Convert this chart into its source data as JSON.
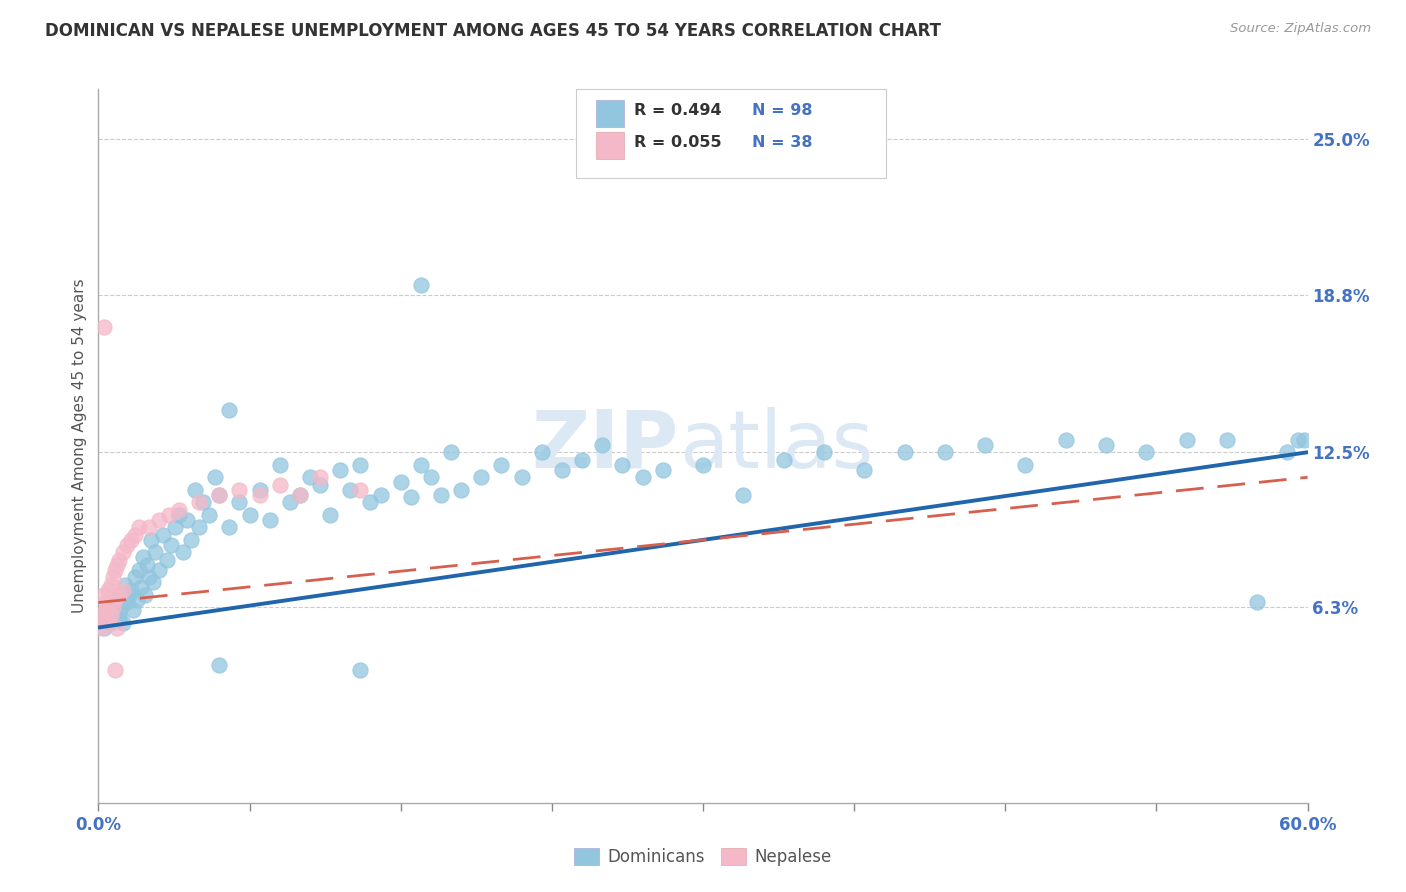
{
  "title": "DOMINICAN VS NEPALESE UNEMPLOYMENT AMONG AGES 45 TO 54 YEARS CORRELATION CHART",
  "source_text": "Source: ZipAtlas.com",
  "ylabel": "Unemployment Among Ages 45 to 54 years",
  "xlim": [
    0,
    0.6
  ],
  "ylim": [
    -0.015,
    0.27
  ],
  "xtick_positions": [
    0.0,
    0.075,
    0.15,
    0.225,
    0.3,
    0.375,
    0.45,
    0.525,
    0.6
  ],
  "xtick_labels_show": {
    "0.0": "0.0%",
    "0.60": "60.0%"
  },
  "right_yticks": [
    0.063,
    0.125,
    0.188,
    0.25
  ],
  "right_yticklabels": [
    "6.3%",
    "12.5%",
    "18.8%",
    "25.0%"
  ],
  "blue_color": "#92c5de",
  "pink_color": "#f4b8c8",
  "blue_line_color": "#2166ac",
  "pink_line_color": "#d6604d",
  "right_tick_color": "#4472c4",
  "watermark_color": "#dce9f5",
  "watermark_text": "ZIPatlas",
  "dom_trend_x0": 0.0,
  "dom_trend_x1": 0.6,
  "dom_trend_y0": 0.055,
  "dom_trend_y1": 0.125,
  "nep_trend_x0": 0.0,
  "nep_trend_x1": 0.6,
  "nep_trend_y0": 0.065,
  "nep_trend_y1": 0.115,
  "dominican_x": [
    0.002,
    0.003,
    0.004,
    0.005,
    0.006,
    0.007,
    0.008,
    0.009,
    0.01,
    0.01,
    0.011,
    0.012,
    0.013,
    0.014,
    0.015,
    0.016,
    0.017,
    0.018,
    0.019,
    0.02,
    0.021,
    0.022,
    0.023,
    0.024,
    0.025,
    0.026,
    0.027,
    0.028,
    0.03,
    0.032,
    0.034,
    0.036,
    0.038,
    0.04,
    0.042,
    0.044,
    0.046,
    0.048,
    0.05,
    0.052,
    0.055,
    0.058,
    0.06,
    0.065,
    0.07,
    0.075,
    0.08,
    0.085,
    0.09,
    0.095,
    0.1,
    0.105,
    0.11,
    0.115,
    0.12,
    0.125,
    0.13,
    0.135,
    0.14,
    0.15,
    0.155,
    0.16,
    0.165,
    0.17,
    0.175,
    0.18,
    0.19,
    0.2,
    0.21,
    0.22,
    0.23,
    0.24,
    0.25,
    0.26,
    0.27,
    0.28,
    0.3,
    0.32,
    0.34,
    0.36,
    0.38,
    0.4,
    0.16,
    0.065,
    0.42,
    0.44,
    0.46,
    0.48,
    0.5,
    0.52,
    0.54,
    0.56,
    0.575,
    0.59,
    0.595,
    0.598,
    0.06,
    0.13
  ],
  "dominican_y": [
    0.06,
    0.055,
    0.058,
    0.062,
    0.057,
    0.064,
    0.059,
    0.066,
    0.06,
    0.058,
    0.063,
    0.057,
    0.072,
    0.065,
    0.068,
    0.07,
    0.062,
    0.075,
    0.066,
    0.078,
    0.071,
    0.083,
    0.068,
    0.08,
    0.075,
    0.09,
    0.073,
    0.085,
    0.078,
    0.092,
    0.082,
    0.088,
    0.095,
    0.1,
    0.085,
    0.098,
    0.09,
    0.11,
    0.095,
    0.105,
    0.1,
    0.115,
    0.108,
    0.095,
    0.105,
    0.1,
    0.11,
    0.098,
    0.12,
    0.105,
    0.108,
    0.115,
    0.112,
    0.1,
    0.118,
    0.11,
    0.12,
    0.105,
    0.108,
    0.113,
    0.107,
    0.12,
    0.115,
    0.108,
    0.125,
    0.11,
    0.115,
    0.12,
    0.115,
    0.125,
    0.118,
    0.122,
    0.128,
    0.12,
    0.115,
    0.118,
    0.12,
    0.108,
    0.122,
    0.125,
    0.118,
    0.125,
    0.192,
    0.142,
    0.125,
    0.128,
    0.12,
    0.13,
    0.128,
    0.125,
    0.13,
    0.13,
    0.065,
    0.125,
    0.13,
    0.13,
    0.04,
    0.038
  ],
  "nepalese_x": [
    0.001,
    0.002,
    0.003,
    0.003,
    0.004,
    0.004,
    0.005,
    0.005,
    0.006,
    0.006,
    0.007,
    0.007,
    0.008,
    0.008,
    0.009,
    0.009,
    0.01,
    0.01,
    0.012,
    0.012,
    0.014,
    0.016,
    0.018,
    0.02,
    0.025,
    0.03,
    0.035,
    0.04,
    0.05,
    0.06,
    0.07,
    0.08,
    0.09,
    0.1,
    0.11,
    0.13,
    0.003,
    0.008
  ],
  "nepalese_y": [
    0.06,
    0.055,
    0.068,
    0.058,
    0.065,
    0.062,
    0.07,
    0.058,
    0.072,
    0.06,
    0.075,
    0.063,
    0.078,
    0.066,
    0.08,
    0.055,
    0.082,
    0.068,
    0.085,
    0.07,
    0.088,
    0.09,
    0.092,
    0.095,
    0.095,
    0.098,
    0.1,
    0.102,
    0.105,
    0.108,
    0.11,
    0.108,
    0.112,
    0.108,
    0.115,
    0.11,
    0.175,
    0.038
  ]
}
